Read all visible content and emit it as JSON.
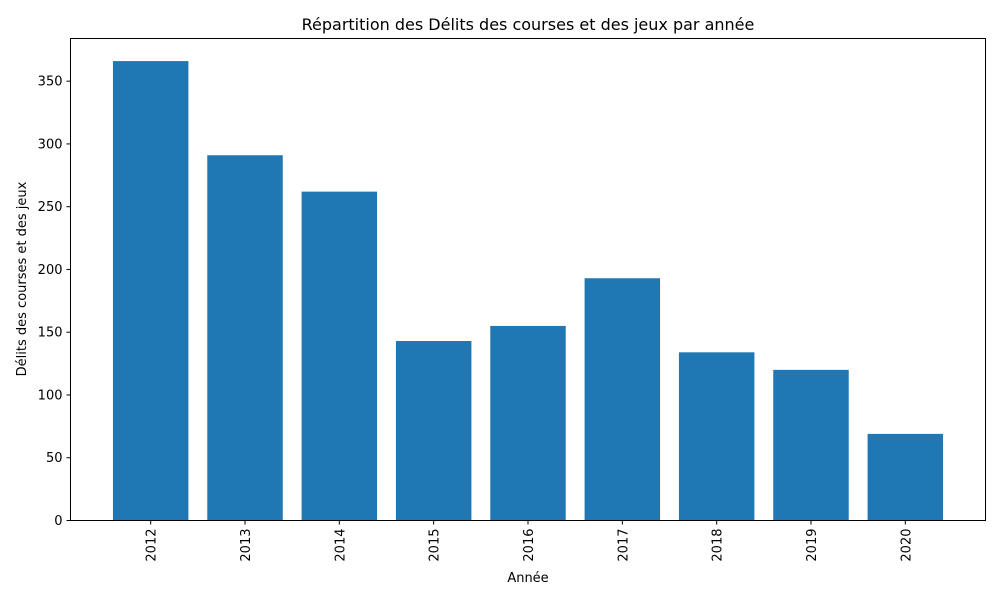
{
  "chart_data": {
    "type": "bar",
    "title": "Répartition des Délits des courses et des jeux par année",
    "xlabel": "Année",
    "ylabel": "Délits des courses et des jeux",
    "categories": [
      "2012",
      "2013",
      "2014",
      "2015",
      "2016",
      "2017",
      "2018",
      "2019",
      "2020"
    ],
    "values": [
      366,
      291,
      262,
      143,
      155,
      193,
      134,
      120,
      69
    ],
    "ylim": [
      0,
      384
    ],
    "yticks": [
      0,
      50,
      100,
      150,
      200,
      250,
      300,
      350
    ],
    "bar_color": "#1f77b4",
    "grid": false,
    "x_tick_rotation": "vertical"
  }
}
